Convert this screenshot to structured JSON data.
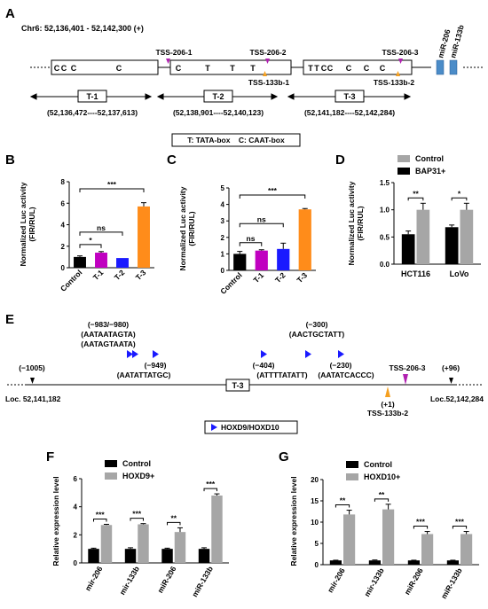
{
  "panelA": {
    "letter": "A",
    "coords": "Chr6: 52,136,401 - 52,142,300 (+)",
    "box1_letters": [
      "C",
      "C",
      "C",
      "C"
    ],
    "box2_letters": [
      "C",
      "T",
      "T",
      "T"
    ],
    "box3_letters": [
      "T",
      "T",
      "C",
      "C",
      "C",
      "C",
      "C"
    ],
    "tss_top": [
      "TSS-206-1",
      "TSS-206-2",
      "TSS-206-3"
    ],
    "tss_bottom": [
      "TSS-133b-1",
      "TSS-133b-2"
    ],
    "mirna": [
      "miR-206",
      "miR-133b"
    ],
    "regions": [
      "T-1",
      "T-2",
      "T-3"
    ],
    "region_coords": [
      "(52,136,472----52,137,613)",
      "(52,138,901----52,140,123)",
      "(52,141,182----52,142,284)"
    ],
    "legend": "T: TATA-box    C: CAAT-box"
  },
  "panelE": {
    "letter": "E",
    "left_pos": "(−1005)",
    "right_pos": "(+96)",
    "loc_left": "Loc. 52,141,182",
    "loc_right": "Loc.52,142,284",
    "region": "T-3",
    "tss_top": "TSS-206-3",
    "tss_bottom_pos": "(+1)",
    "tss_bottom": "TSS-133b-2",
    "site1": [
      "(−983/−980)",
      "(AATAATAGTA)",
      "(AATAGTAATA)"
    ],
    "site2": [
      "(−949)",
      "(AATATTATGC)"
    ],
    "site3": [
      "(−404)",
      "(ATTTTATATT)"
    ],
    "site4": [
      "(−300)",
      "(AACTGCTATT)"
    ],
    "site5": [
      "(−230)",
      "(AATATCACCC)"
    ],
    "legend": "HOXD9/HOXD10"
  },
  "colors": {
    "black": "#000000",
    "purple": "#c000c0",
    "blue": "#1a1aff",
    "orange": "#ff8c1a",
    "gray": "#a6a6a6",
    "magenta": "#b020b0",
    "orangeArrow": "#f5a020",
    "mirBlue": "#4b8cc8"
  },
  "chart_data": [
    {
      "id": "B",
      "letter": "B",
      "type": "bar",
      "ylabel": "Normalized Luc activity\n(FIR/RUL)",
      "ylim": [
        0,
        8
      ],
      "yticks": [
        0,
        2,
        4,
        6,
        8
      ],
      "categories": [
        "Control",
        "T-1",
        "T-2",
        "T-3"
      ],
      "values": [
        1.0,
        1.4,
        0.9,
        5.7
      ],
      "errors": [
        0.1,
        0.1,
        0.0,
        0.35
      ],
      "colors": [
        "#000000",
        "#c000c0",
        "#1a1aff",
        "#ff8c1a"
      ],
      "significance": [
        {
          "from": 0,
          "to": 1,
          "label": "*"
        },
        {
          "from": 0,
          "to": 2,
          "label": "ns"
        },
        {
          "from": 0,
          "to": 3,
          "label": "***"
        }
      ]
    },
    {
      "id": "C",
      "letter": "C",
      "type": "bar",
      "ylabel": "Normalized Luc activity\n(FIR/RUL)",
      "ylim": [
        0,
        5
      ],
      "yticks": [
        0,
        1,
        2,
        3,
        4,
        5
      ],
      "categories": [
        "Control",
        "T-1",
        "T-2",
        "T-3"
      ],
      "values": [
        1.0,
        1.2,
        1.3,
        3.7
      ],
      "errors": [
        0.15,
        0.05,
        0.35,
        0.05
      ],
      "colors": [
        "#000000",
        "#c000c0",
        "#1a1aff",
        "#ff8c1a"
      ],
      "significance": [
        {
          "from": 0,
          "to": 1,
          "label": "ns"
        },
        {
          "from": 0,
          "to": 2,
          "label": "ns"
        },
        {
          "from": 0,
          "to": 3,
          "label": "***"
        }
      ]
    },
    {
      "id": "D",
      "letter": "D",
      "type": "bar",
      "ylabel": "Normalized Luc activity\n(FIR/RUL)",
      "ylim": [
        0,
        1.5
      ],
      "yticks": [
        0.0,
        0.5,
        1.0,
        1.5
      ],
      "categories": [
        "HCT116",
        "LoVo"
      ],
      "series": [
        {
          "name": "Control",
          "values": [
            1.0,
            1.0
          ],
          "errors": [
            0.12,
            0.12
          ],
          "color": "#a6a6a6"
        },
        {
          "name": "BAP31+",
          "values": [
            0.55,
            0.68
          ],
          "errors": [
            0.06,
            0.04
          ],
          "color": "#000000"
        }
      ],
      "bar_order": [
        "BAP31+",
        "Control"
      ],
      "significance": [
        {
          "group": 0,
          "label": "**"
        },
        {
          "group": 1,
          "label": "*"
        }
      ],
      "legend_position": "top"
    },
    {
      "id": "F",
      "letter": "F",
      "type": "bar",
      "ylabel": "Relative expression level",
      "ylim": [
        0,
        6
      ],
      "yticks": [
        0,
        2,
        4,
        6
      ],
      "categories": [
        "mir-206",
        "mir-133b",
        "miR-206",
        "miR-133b"
      ],
      "series": [
        {
          "name": "Control",
          "values": [
            1.0,
            1.0,
            1.0,
            1.0
          ],
          "errors": [
            0.05,
            0.08,
            0.05,
            0.08
          ],
          "color": "#000000"
        },
        {
          "name": "HOXD9+",
          "values": [
            2.7,
            2.75,
            2.2,
            4.8
          ],
          "errors": [
            0.05,
            0.05,
            0.3,
            0.12
          ],
          "color": "#a6a6a6"
        }
      ],
      "significance": [
        {
          "group": 0,
          "label": "***"
        },
        {
          "group": 1,
          "label": "***"
        },
        {
          "group": 2,
          "label": "**"
        },
        {
          "group": 3,
          "label": "***"
        }
      ],
      "legend_position": "top-left"
    },
    {
      "id": "G",
      "letter": "G",
      "type": "bar",
      "ylabel": "Relative expression level",
      "ylim": [
        0,
        20
      ],
      "yticks": [
        0,
        5,
        10,
        15,
        20
      ],
      "categories": [
        "mir-206",
        "mir-133b",
        "miR-206",
        "miR-133b"
      ],
      "series": [
        {
          "name": "Control",
          "values": [
            1.0,
            1.0,
            1.0,
            1.0
          ],
          "errors": [
            0.05,
            0.1,
            0.05,
            0.05
          ],
          "color": "#000000"
        },
        {
          "name": "HOXD10+",
          "values": [
            11.8,
            13.0,
            7.2,
            7.2
          ],
          "errors": [
            1.0,
            1.2,
            0.6,
            0.6
          ],
          "color": "#a6a6a6"
        }
      ],
      "significance": [
        {
          "group": 0,
          "label": "**"
        },
        {
          "group": 1,
          "label": "**"
        },
        {
          "group": 2,
          "label": "***"
        },
        {
          "group": 3,
          "label": "***"
        }
      ],
      "legend_position": "top-left"
    }
  ]
}
